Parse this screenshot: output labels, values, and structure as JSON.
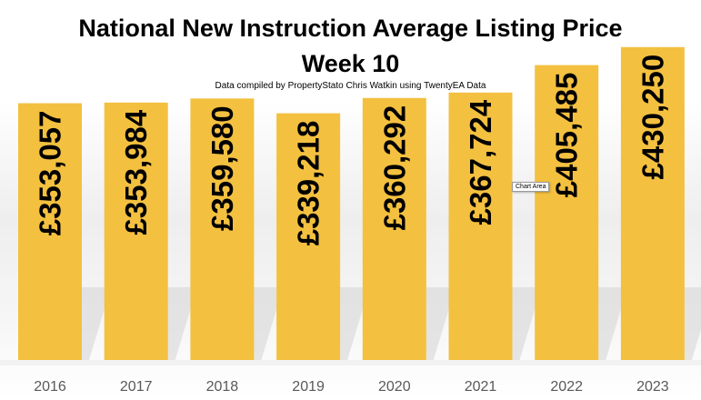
{
  "chart_data": {
    "type": "bar",
    "title": "National New Instruction Average Listing Price",
    "title_line2": "Week 10",
    "subtitle": "Data compiled by PropertyStato Chris Watkin using TwentyEA Data",
    "categories": [
      "2016",
      "2017",
      "2018",
      "2019",
      "2020",
      "2021",
      "2022",
      "2023"
    ],
    "values": [
      353057,
      353984,
      359580,
      339218,
      360292,
      367724,
      405485,
      430250
    ],
    "data_labels": [
      "£353,057",
      "£353,984",
      "£359,580",
      "£339,218",
      "£360,292",
      "£367,724",
      "£405,485",
      "£430,250"
    ],
    "bar_color": "#F3C040",
    "ylim": [
      0,
      450000
    ],
    "grid": false,
    "legend": "none"
  },
  "tooltip": {
    "text": "Chart Area"
  }
}
